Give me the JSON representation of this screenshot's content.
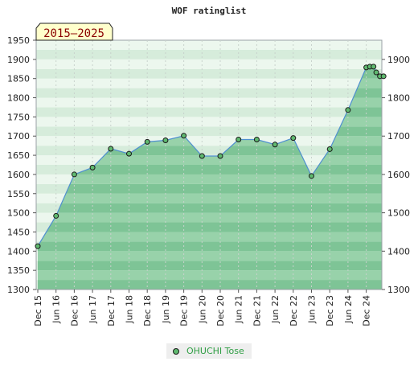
{
  "chart_data": {
    "type": "area",
    "title": "WOF ratinglist",
    "period": "2015–2025",
    "ylim": [
      1300,
      1950
    ],
    "y_ticks_left": [
      1300,
      1350,
      1400,
      1450,
      1500,
      1550,
      1600,
      1650,
      1700,
      1750,
      1800,
      1850,
      1900,
      1950
    ],
    "y_ticks_right": [
      1300,
      1400,
      1500,
      1600,
      1700,
      1800,
      1900
    ],
    "x_tick_labels": [
      "Dec 15",
      "Jun 16",
      "Dec 16",
      "Jun 17",
      "Dec 17",
      "Jun 18",
      "Dec 18",
      "Jun 19",
      "Dec 19",
      "Jun 20",
      "Dec 20",
      "Jun 21",
      "Dec 21",
      "Jun 22",
      "Dec 22",
      "Jun 23",
      "Dec 23",
      "Jun 24",
      "Dec 24"
    ],
    "grid": true,
    "legend_position": "bottom",
    "series": [
      {
        "name": "OHUCHI Tose",
        "color": "#4f8fd0",
        "points": [
          {
            "x": 0.0,
            "y": 1413
          },
          {
            "x": 1.0,
            "y": 1492
          },
          {
            "x": 2.0,
            "y": 1600
          },
          {
            "x": 3.0,
            "y": 1618
          },
          {
            "x": 4.0,
            "y": 1667
          },
          {
            "x": 5.0,
            "y": 1654
          },
          {
            "x": 6.0,
            "y": 1685
          },
          {
            "x": 7.0,
            "y": 1689
          },
          {
            "x": 8.0,
            "y": 1701
          },
          {
            "x": 9.0,
            "y": 1648
          },
          {
            "x": 10.0,
            "y": 1648
          },
          {
            "x": 11.0,
            "y": 1691
          },
          {
            "x": 12.0,
            "y": 1691
          },
          {
            "x": 13.0,
            "y": 1678
          },
          {
            "x": 14.0,
            "y": 1695
          },
          {
            "x": 15.0,
            "y": 1596
          },
          {
            "x": 16.0,
            "y": 1666
          },
          {
            "x": 17.0,
            "y": 1768
          },
          {
            "x": 18.0,
            "y": 1879
          },
          {
            "x": 18.2,
            "y": 1881
          },
          {
            "x": 18.4,
            "y": 1881
          },
          {
            "x": 18.55,
            "y": 1866
          },
          {
            "x": 18.75,
            "y": 1856
          },
          {
            "x": 18.95,
            "y": 1856
          }
        ]
      }
    ]
  },
  "legend": {
    "label": "OHUCHI Tose"
  }
}
